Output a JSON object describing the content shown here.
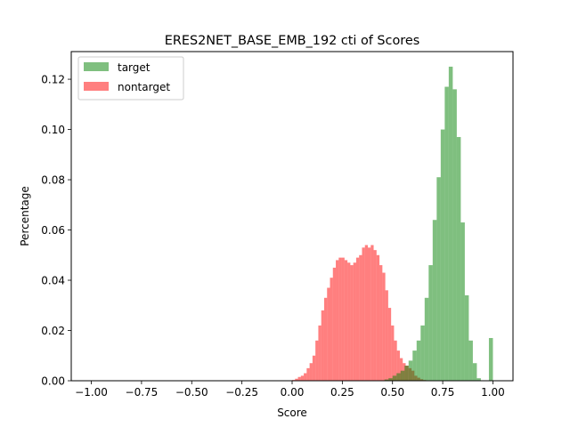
{
  "chart_data": {
    "type": "histogram",
    "title": "ERES2NET_BASE_EMB_192 cti of Scores",
    "xlabel": "Score",
    "ylabel": "Percentage",
    "xlim": [
      -1.1,
      1.1
    ],
    "ylim": [
      0,
      0.131
    ],
    "xticks": [
      "−1.00",
      "−0.75",
      "−0.50",
      "−0.25",
      "0.00",
      "0.25",
      "0.50",
      "0.75",
      "1.00"
    ],
    "xtick_values": [
      -1.0,
      -0.75,
      -0.5,
      -0.25,
      0.0,
      0.25,
      0.5,
      0.75,
      1.0
    ],
    "yticks": [
      "0.00",
      "0.02",
      "0.04",
      "0.06",
      "0.08",
      "0.10",
      "0.12"
    ],
    "ytick_values": [
      0.0,
      0.02,
      0.04,
      0.06,
      0.08,
      0.1,
      0.12
    ],
    "legend_position": "top-left",
    "series": [
      {
        "name": "target",
        "color": "#008000",
        "opacity": 0.5,
        "bin_width": 0.02,
        "bins": [
          [
            0.46,
            0.0005
          ],
          [
            0.48,
            0.001
          ],
          [
            0.5,
            0.002
          ],
          [
            0.52,
            0.003
          ],
          [
            0.54,
            0.004
          ],
          [
            0.56,
            0.006
          ],
          [
            0.58,
            0.008
          ],
          [
            0.6,
            0.012
          ],
          [
            0.62,
            0.016
          ],
          [
            0.64,
            0.022
          ],
          [
            0.66,
            0.033
          ],
          [
            0.68,
            0.046
          ],
          [
            0.7,
            0.064
          ],
          [
            0.72,
            0.081
          ],
          [
            0.74,
            0.1
          ],
          [
            0.76,
            0.117
          ],
          [
            0.78,
            0.125
          ],
          [
            0.8,
            0.116
          ],
          [
            0.82,
            0.097
          ],
          [
            0.84,
            0.063
          ],
          [
            0.86,
            0.034
          ],
          [
            0.88,
            0.016
          ],
          [
            0.9,
            0.007
          ],
          [
            0.92,
            0.001
          ],
          [
            0.98,
            0.017
          ]
        ]
      },
      {
        "name": "nontarget",
        "color": "#ff0000",
        "opacity": 0.5,
        "bin_width": 0.0145,
        "bins": [
          [
            0.0,
            0.0003
          ],
          [
            0.0145,
            0.0008
          ],
          [
            0.029,
            0.0015
          ],
          [
            0.0435,
            0.002
          ],
          [
            0.058,
            0.003
          ],
          [
            0.0725,
            0.005
          ],
          [
            0.087,
            0.007
          ],
          [
            0.1015,
            0.01
          ],
          [
            0.116,
            0.016
          ],
          [
            0.1305,
            0.022
          ],
          [
            0.145,
            0.028
          ],
          [
            0.1595,
            0.033
          ],
          [
            0.174,
            0.037
          ],
          [
            0.1885,
            0.041
          ],
          [
            0.203,
            0.045
          ],
          [
            0.2175,
            0.048
          ],
          [
            0.232,
            0.049
          ],
          [
            0.2465,
            0.049
          ],
          [
            0.261,
            0.048
          ],
          [
            0.2755,
            0.047
          ],
          [
            0.29,
            0.046
          ],
          [
            0.3045,
            0.047
          ],
          [
            0.319,
            0.049
          ],
          [
            0.3335,
            0.05
          ],
          [
            0.348,
            0.053
          ],
          [
            0.3625,
            0.054
          ],
          [
            0.377,
            0.053
          ],
          [
            0.3915,
            0.054
          ],
          [
            0.406,
            0.052
          ],
          [
            0.4205,
            0.05
          ],
          [
            0.435,
            0.046
          ],
          [
            0.4495,
            0.043
          ],
          [
            0.464,
            0.036
          ],
          [
            0.4785,
            0.029
          ],
          [
            0.493,
            0.022
          ],
          [
            0.5075,
            0.016
          ],
          [
            0.522,
            0.012
          ],
          [
            0.5365,
            0.009
          ],
          [
            0.551,
            0.007
          ],
          [
            0.5655,
            0.006
          ],
          [
            0.58,
            0.005
          ],
          [
            0.5945,
            0.004
          ],
          [
            0.609,
            0.002
          ],
          [
            0.6235,
            0.0012
          ],
          [
            0.638,
            0.0006
          ],
          [
            0.6525,
            0.0003
          ]
        ]
      }
    ]
  }
}
